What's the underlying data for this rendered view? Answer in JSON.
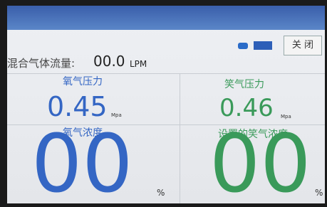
{
  "status_bar": {
    "close_button": "关 闭"
  },
  "flow": {
    "label": "混合气体流量:",
    "value": "00.0",
    "unit": "LPM"
  },
  "panels": [
    {
      "label": "氧气压力",
      "value": "0.45",
      "unit": "Mpa"
    },
    {
      "label": "笑气压力",
      "value": "0.46",
      "unit": "Mpa"
    },
    {
      "label": "氧气浓度",
      "value": "00",
      "unit": "%"
    },
    {
      "label": "设置的笑气浓度",
      "value": "00",
      "unit": "%"
    }
  ]
}
